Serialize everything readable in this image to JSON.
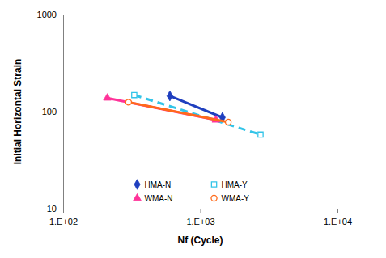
{
  "chart_data": {
    "type": "line",
    "x_label": "Nf (Cycle)",
    "y_label": "Initial Horizontal Strain",
    "log": true,
    "grid": false,
    "legend": "bottom",
    "xlim": [
      100,
      10000
    ],
    "xticks": [
      {
        "value": 100,
        "label": "1.E+02"
      },
      {
        "value": 1000,
        "label": "1.E+03"
      },
      {
        "value": 10000,
        "label": "1.E+04"
      }
    ],
    "ylim": [
      10,
      1000
    ],
    "yticks": [
      10,
      100,
      1000
    ],
    "series": [
      {
        "name": "HMA-N",
        "color": "#1f3fbf",
        "marker": "diamond",
        "line_style": "solid",
        "x": [
          600,
          1450
        ],
        "values": [
          145,
          87
        ]
      },
      {
        "name": "HMA-Y",
        "color": "#33c4e8",
        "marker": "square-open",
        "line_style": "dashed",
        "x": [
          330,
          2750
        ],
        "values": [
          148,
          58
        ]
      },
      {
        "name": "WMA-N",
        "color": "#ff3399",
        "marker": "triangle",
        "line_style": "solid",
        "x": [
          210,
          1300
        ],
        "values": [
          138,
          82
        ]
      },
      {
        "name": "WMA-Y",
        "color": "#ff6a1a",
        "marker": "circle-open",
        "line_style": "solid",
        "x": [
          300,
          1600
        ],
        "values": [
          125,
          78
        ]
      }
    ]
  }
}
